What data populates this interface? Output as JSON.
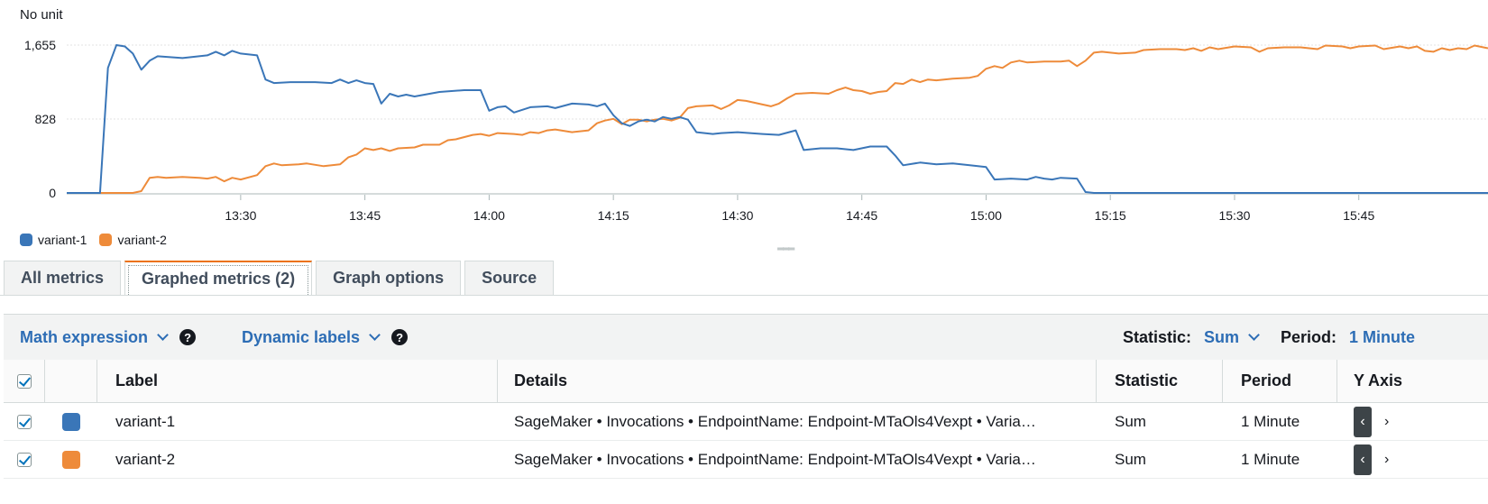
{
  "chart": {
    "unit_label": "No unit",
    "legend_position": "bottom-left"
  },
  "chart_data": {
    "type": "line",
    "ylabel": "No unit",
    "ylim": [
      0,
      1655
    ],
    "y_ticks": [
      "0",
      "828",
      "1,655"
    ],
    "y_tick_values": [
      0,
      828,
      1655
    ],
    "x_range_minutes": [
      13.15,
      16.01
    ],
    "x_ticks": [
      "13:30",
      "13:45",
      "14:00",
      "14:15",
      "14:30",
      "14:45",
      "15:00",
      "15:15",
      "15:30",
      "15:45"
    ],
    "x_tick_values": [
      13.5,
      13.75,
      14.0,
      14.25,
      14.5,
      14.75,
      15.0,
      15.25,
      15.5,
      15.75
    ],
    "grid": true,
    "series": [
      {
        "name": "variant-1",
        "color": "#3a76b8",
        "points": [
          [
            13.15,
            0
          ],
          [
            13.217,
            0
          ],
          [
            13.233,
            1400
          ],
          [
            13.25,
            1655
          ],
          [
            13.267,
            1640
          ],
          [
            13.283,
            1560
          ],
          [
            13.3,
            1380
          ],
          [
            13.317,
            1480
          ],
          [
            13.333,
            1530
          ],
          [
            13.383,
            1510
          ],
          [
            13.433,
            1540
          ],
          [
            13.45,
            1580
          ],
          [
            13.467,
            1540
          ],
          [
            13.483,
            1590
          ],
          [
            13.5,
            1560
          ],
          [
            13.533,
            1540
          ],
          [
            13.55,
            1270
          ],
          [
            13.567,
            1230
          ],
          [
            13.6,
            1240
          ],
          [
            13.65,
            1240
          ],
          [
            13.683,
            1230
          ],
          [
            13.7,
            1270
          ],
          [
            13.717,
            1230
          ],
          [
            13.733,
            1260
          ],
          [
            13.75,
            1230
          ],
          [
            13.767,
            1220
          ],
          [
            13.783,
            1000
          ],
          [
            13.8,
            1110
          ],
          [
            13.817,
            1080
          ],
          [
            13.833,
            1100
          ],
          [
            13.85,
            1080
          ],
          [
            13.9,
            1130
          ],
          [
            13.95,
            1150
          ],
          [
            13.983,
            1150
          ],
          [
            14.0,
            920
          ],
          [
            14.017,
            960
          ],
          [
            14.033,
            970
          ],
          [
            14.05,
            900
          ],
          [
            14.083,
            960
          ],
          [
            14.117,
            970
          ],
          [
            14.133,
            950
          ],
          [
            14.167,
            1000
          ],
          [
            14.2,
            990
          ],
          [
            14.217,
            970
          ],
          [
            14.233,
            1000
          ],
          [
            14.25,
            870
          ],
          [
            14.267,
            780
          ],
          [
            14.283,
            750
          ],
          [
            14.3,
            800
          ],
          [
            14.317,
            820
          ],
          [
            14.333,
            800
          ],
          [
            14.35,
            850
          ],
          [
            14.367,
            830
          ],
          [
            14.383,
            850
          ],
          [
            14.4,
            820
          ],
          [
            14.417,
            680
          ],
          [
            14.45,
            660
          ],
          [
            14.467,
            670
          ],
          [
            14.5,
            680
          ],
          [
            14.55,
            660
          ],
          [
            14.583,
            650
          ],
          [
            14.617,
            700
          ],
          [
            14.633,
            480
          ],
          [
            14.667,
            500
          ],
          [
            14.7,
            500
          ],
          [
            14.733,
            480
          ],
          [
            14.767,
            520
          ],
          [
            14.8,
            520
          ],
          [
            14.817,
            420
          ],
          [
            14.833,
            310
          ],
          [
            14.867,
            340
          ],
          [
            14.9,
            320
          ],
          [
            14.933,
            330
          ],
          [
            14.967,
            310
          ],
          [
            15.0,
            290
          ],
          [
            15.017,
            150
          ],
          [
            15.05,
            160
          ],
          [
            15.083,
            150
          ],
          [
            15.1,
            180
          ],
          [
            15.117,
            160
          ],
          [
            15.133,
            150
          ],
          [
            15.15,
            170
          ],
          [
            15.183,
            160
          ],
          [
            15.2,
            10
          ],
          [
            15.217,
            0
          ],
          [
            16.01,
            0
          ]
        ]
      },
      {
        "name": "variant-2",
        "color": "#ee8b3a",
        "points": [
          [
            13.15,
            0
          ],
          [
            13.217,
            0
          ],
          [
            13.233,
            0
          ],
          [
            13.25,
            0
          ],
          [
            13.283,
            0
          ],
          [
            13.3,
            20
          ],
          [
            13.317,
            170
          ],
          [
            13.333,
            180
          ],
          [
            13.35,
            170
          ],
          [
            13.383,
            180
          ],
          [
            13.417,
            170
          ],
          [
            13.433,
            160
          ],
          [
            13.45,
            180
          ],
          [
            13.467,
            130
          ],
          [
            13.483,
            170
          ],
          [
            13.5,
            150
          ],
          [
            13.533,
            200
          ],
          [
            13.55,
            300
          ],
          [
            13.567,
            330
          ],
          [
            13.583,
            310
          ],
          [
            13.617,
            320
          ],
          [
            13.633,
            330
          ],
          [
            13.667,
            300
          ],
          [
            13.7,
            320
          ],
          [
            13.717,
            400
          ],
          [
            13.733,
            430
          ],
          [
            13.75,
            500
          ],
          [
            13.767,
            480
          ],
          [
            13.783,
            500
          ],
          [
            13.8,
            470
          ],
          [
            13.817,
            500
          ],
          [
            13.85,
            510
          ],
          [
            13.867,
            540
          ],
          [
            13.9,
            540
          ],
          [
            13.917,
            590
          ],
          [
            13.933,
            600
          ],
          [
            13.967,
            650
          ],
          [
            13.983,
            660
          ],
          [
            14.0,
            640
          ],
          [
            14.017,
            670
          ],
          [
            14.05,
            660
          ],
          [
            14.067,
            650
          ],
          [
            14.083,
            680
          ],
          [
            14.1,
            670
          ],
          [
            14.117,
            700
          ],
          [
            14.133,
            710
          ],
          [
            14.167,
            680
          ],
          [
            14.2,
            700
          ],
          [
            14.217,
            780
          ],
          [
            14.233,
            810
          ],
          [
            14.25,
            830
          ],
          [
            14.267,
            770
          ],
          [
            14.283,
            820
          ],
          [
            14.3,
            820
          ],
          [
            14.317,
            800
          ],
          [
            14.333,
            820
          ],
          [
            14.35,
            830
          ],
          [
            14.367,
            810
          ],
          [
            14.383,
            840
          ],
          [
            14.4,
            950
          ],
          [
            14.417,
            970
          ],
          [
            14.45,
            980
          ],
          [
            14.467,
            940
          ],
          [
            14.483,
            980
          ],
          [
            14.5,
            1040
          ],
          [
            14.517,
            1030
          ],
          [
            14.55,
            990
          ],
          [
            14.567,
            970
          ],
          [
            14.583,
            1000
          ],
          [
            14.6,
            1060
          ],
          [
            14.617,
            1110
          ],
          [
            14.65,
            1120
          ],
          [
            14.683,
            1110
          ],
          [
            14.7,
            1150
          ],
          [
            14.717,
            1180
          ],
          [
            14.733,
            1150
          ],
          [
            14.75,
            1140
          ],
          [
            14.767,
            1110
          ],
          [
            14.783,
            1130
          ],
          [
            14.8,
            1140
          ],
          [
            14.817,
            1230
          ],
          [
            14.833,
            1220
          ],
          [
            14.85,
            1270
          ],
          [
            14.867,
            1240
          ],
          [
            14.883,
            1270
          ],
          [
            14.9,
            1260
          ],
          [
            14.933,
            1280
          ],
          [
            14.967,
            1290
          ],
          [
            14.983,
            1310
          ],
          [
            15.0,
            1390
          ],
          [
            15.017,
            1420
          ],
          [
            15.033,
            1400
          ],
          [
            15.05,
            1460
          ],
          [
            15.067,
            1480
          ],
          [
            15.083,
            1460
          ],
          [
            15.117,
            1470
          ],
          [
            15.15,
            1470
          ],
          [
            15.167,
            1480
          ],
          [
            15.183,
            1420
          ],
          [
            15.2,
            1480
          ],
          [
            15.217,
            1570
          ],
          [
            15.233,
            1580
          ],
          [
            15.267,
            1560
          ],
          [
            15.3,
            1570
          ],
          [
            15.317,
            1600
          ],
          [
            15.35,
            1610
          ],
          [
            15.383,
            1610
          ],
          [
            15.4,
            1600
          ],
          [
            15.417,
            1620
          ],
          [
            15.433,
            1590
          ],
          [
            15.45,
            1630
          ],
          [
            15.467,
            1610
          ],
          [
            15.5,
            1640
          ],
          [
            15.533,
            1630
          ],
          [
            15.55,
            1580
          ],
          [
            15.567,
            1620
          ],
          [
            15.6,
            1630
          ],
          [
            15.633,
            1630
          ],
          [
            15.667,
            1610
          ],
          [
            15.683,
            1650
          ],
          [
            15.717,
            1640
          ],
          [
            15.733,
            1620
          ],
          [
            15.75,
            1640
          ],
          [
            15.783,
            1650
          ],
          [
            15.8,
            1610
          ],
          [
            15.833,
            1640
          ],
          [
            15.85,
            1620
          ],
          [
            15.867,
            1640
          ],
          [
            15.883,
            1590
          ],
          [
            15.9,
            1580
          ],
          [
            15.917,
            1620
          ],
          [
            15.933,
            1600
          ],
          [
            15.95,
            1620
          ],
          [
            15.967,
            1610
          ],
          [
            15.983,
            1650
          ],
          [
            16.01,
            1620
          ]
        ]
      }
    ]
  },
  "legend": [
    {
      "name": "variant-1",
      "color": "#3a76b8"
    },
    {
      "name": "variant-2",
      "color": "#ee8b3a"
    }
  ],
  "tabs": [
    {
      "label": "All metrics",
      "active": false
    },
    {
      "label": "Graphed metrics (2)",
      "active": true
    },
    {
      "label": "Graph options",
      "active": false
    },
    {
      "label": "Source",
      "active": false
    }
  ],
  "toolbar": {
    "math_expression": "Math expression",
    "dynamic_labels": "Dynamic labels",
    "statistic_label": "Statistic:",
    "statistic_value": "Sum",
    "period_label": "Period:",
    "period_value": "1 Minute"
  },
  "table": {
    "headers": {
      "label": "Label",
      "details": "Details",
      "statistic": "Statistic",
      "period": "Period",
      "yaxis": "Y Axis"
    },
    "rows": [
      {
        "checked": true,
        "color": "#3a76b8",
        "label": "variant-1",
        "details": "SageMaker • Invocations • EndpointName: Endpoint-MTaOls4Vexpt • Varia…",
        "statistic": "Sum",
        "period": "1 Minute",
        "yaxis_prev": "‹",
        "yaxis_next": "›"
      },
      {
        "checked": true,
        "color": "#ee8b3a",
        "label": "variant-2",
        "details": "SageMaker • Invocations • EndpointName: Endpoint-MTaOls4Vexpt • Varia…",
        "statistic": "Sum",
        "period": "1 Minute",
        "yaxis_prev": "‹",
        "yaxis_next": "›"
      }
    ]
  }
}
